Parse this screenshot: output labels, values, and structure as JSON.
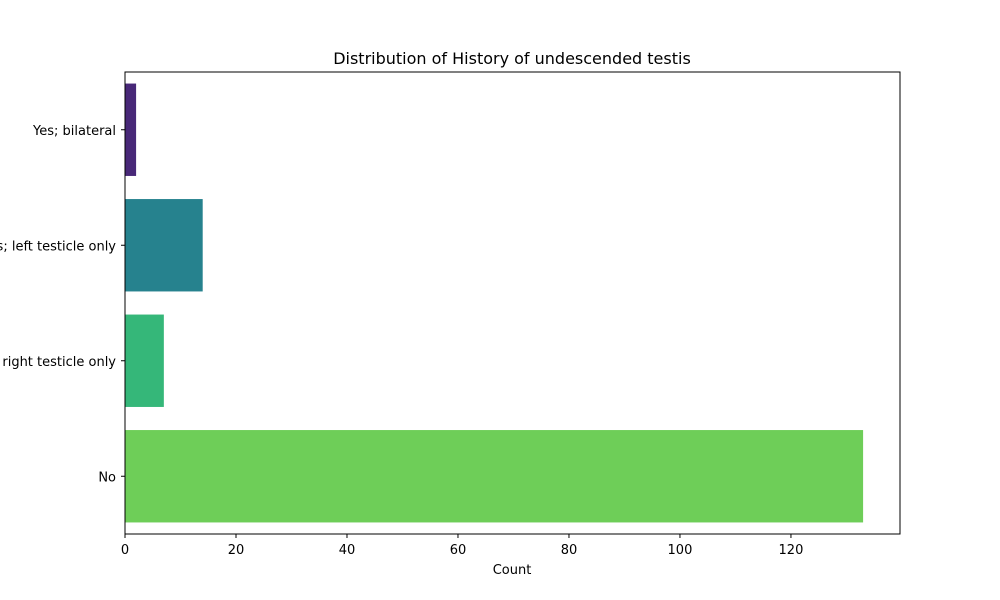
{
  "chart_data": {
    "type": "bar",
    "orientation": "horizontal",
    "title": "Distribution of History of undescended testis",
    "xlabel": "Count",
    "ylabel": "",
    "categories": [
      "Yes; bilateral",
      "Yes; left testicle only",
      "Yes; right testicle only",
      "No"
    ],
    "values": [
      2,
      14,
      7,
      133
    ],
    "colors": [
      "#482878",
      "#26828e",
      "#35b779",
      "#6ece58"
    ],
    "xlim": [
      0,
      139.65
    ],
    "xticks": [
      0,
      20,
      40,
      60,
      80,
      100,
      120
    ],
    "grid": false,
    "legend": "none"
  }
}
